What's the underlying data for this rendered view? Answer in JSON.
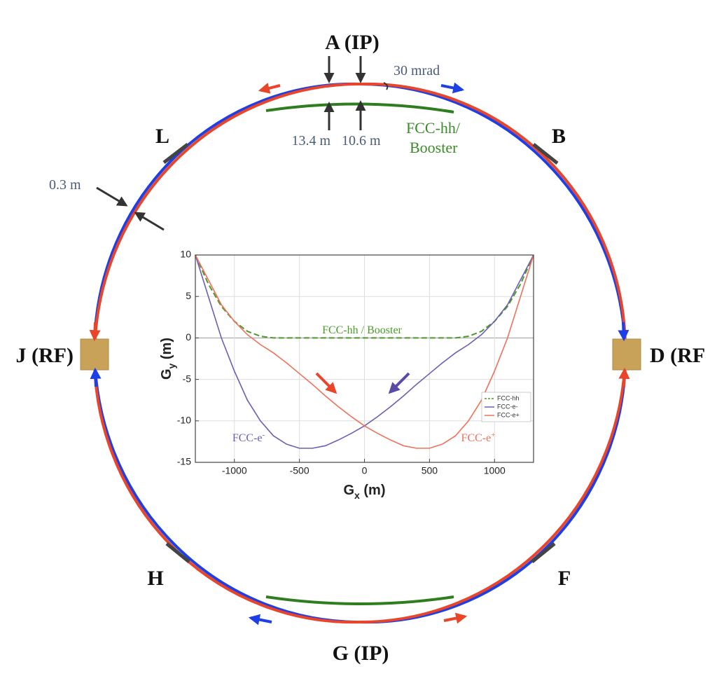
{
  "diagram": {
    "points": {
      "a": "A (IP)",
      "b": "B",
      "d": "D (RF",
      "f": "F",
      "g": "G (IP)",
      "h": "H",
      "j": "J (RF)",
      "l": "L"
    },
    "measurements": {
      "crossing_angle": "30 mrad",
      "offset_1": "13.4 m",
      "offset_2": "10.6 m",
      "separation": "0.3 m"
    },
    "tunnel_label": [
      "FCC-hh/",
      "Booster"
    ]
  },
  "chart_data": {
    "type": "line",
    "x": [
      -1300,
      -1200,
      -1100,
      -1000,
      -900,
      -800,
      -700,
      -600,
      -500,
      -400,
      -300,
      -200,
      -100,
      0,
      100,
      200,
      300,
      400,
      500,
      600,
      700,
      800,
      900,
      1000,
      1100,
      1200,
      1300
    ],
    "series": [
      {
        "name": "FCC-hh",
        "color": "#4a9a2a",
        "linestyle": "dashed",
        "values": [
          10,
          6.5,
          3.8,
          2,
          0.8,
          0.2,
          0,
          0,
          0,
          0,
          0,
          0,
          0,
          0,
          0,
          0,
          0,
          0,
          0,
          0,
          0,
          0.2,
          0.8,
          2,
          3.8,
          6.5,
          10
        ]
      },
      {
        "name": "FCC-e-",
        "color": "#6b5fb5",
        "linestyle": "solid",
        "values": [
          10,
          5,
          0,
          -4,
          -7.5,
          -10,
          -11.8,
          -12.8,
          -13.3,
          -13.3,
          -13,
          -12.3,
          -11.5,
          -10.6,
          -9.5,
          -8.3,
          -7,
          -5.6,
          -4.3,
          -3,
          -1.8,
          -0.8,
          0.4,
          2,
          4,
          7,
          10
        ]
      },
      {
        "name": "FCC-e+",
        "color": "#f0705a",
        "linestyle": "solid",
        "values": [
          10,
          7,
          4,
          2,
          0.4,
          -0.8,
          -1.8,
          -3,
          -4.3,
          -5.6,
          -7,
          -8.3,
          -9.5,
          -10.6,
          -11.5,
          -12.3,
          -13,
          -13.3,
          -13.3,
          -12.8,
          -11.8,
          -10,
          -7.5,
          -4,
          0,
          5,
          10
        ]
      }
    ],
    "xlabel": {
      "symbol": "G",
      "subscript": "x",
      "unit": " (m)"
    },
    "ylabel": {
      "symbol": "G",
      "subscript": "y",
      "unit": " (m)"
    },
    "xlim": [
      -1300,
      1300
    ],
    "ylim": [
      -15,
      10
    ],
    "xticks": [
      -1000,
      -500,
      0,
      500,
      1000
    ],
    "yticks": [
      -15,
      -10,
      -5,
      0,
      5,
      10
    ],
    "grid": true,
    "legend": "lower right",
    "annotations": [
      {
        "text": "FCC-hh / Booster"
      },
      {
        "text": "FCC-e",
        "superscript": "-"
      },
      {
        "text": "FCC-e",
        "superscript": "+"
      }
    ]
  }
}
